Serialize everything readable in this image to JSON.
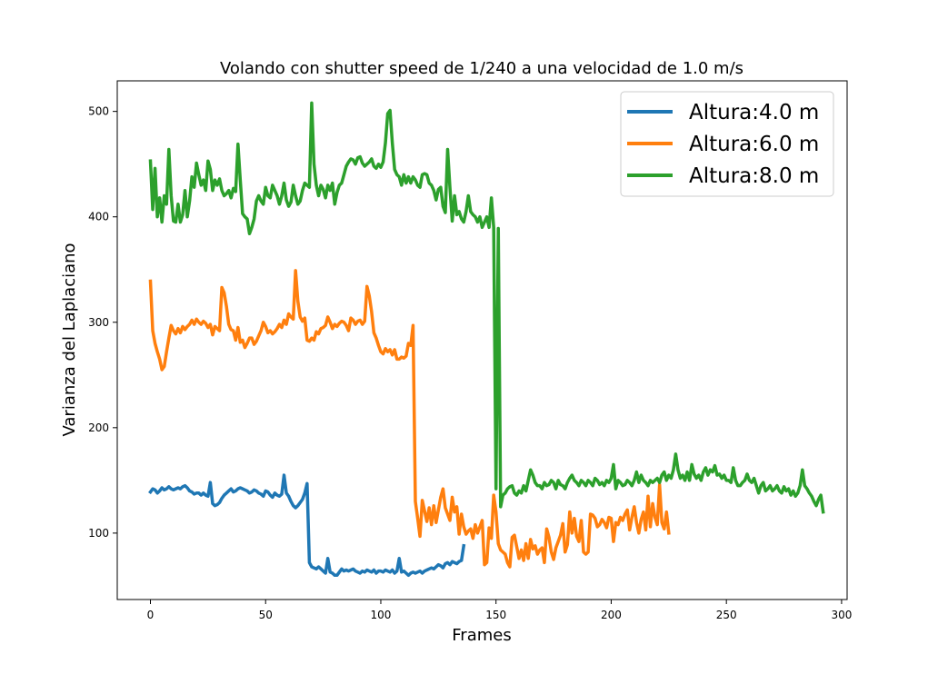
{
  "chart_data": {
    "type": "line",
    "title": "Volando con shutter speed de 1/240 a una velocidad de 1.0 m/s",
    "xlabel": "Frames",
    "ylabel": "Varianza del Laplaciano",
    "xlim": [
      -14.4,
      302.4
    ],
    "ylim": [
      37,
      529
    ],
    "xticks": [
      0,
      50,
      100,
      150,
      200,
      250,
      300
    ],
    "yticks": [
      100,
      200,
      300,
      400,
      500
    ],
    "grid": false,
    "legend_position": "top-right",
    "series": [
      {
        "name": "Altura:4.0 m",
        "color": "#1f77b4",
        "x_start": 0,
        "values": [
          139,
          142,
          141,
          138,
          140,
          143,
          141,
          142,
          144,
          142,
          141,
          142,
          143,
          142,
          144,
          145,
          143,
          140,
          139,
          137,
          138,
          138,
          136,
          138,
          136,
          135,
          148,
          128,
          126,
          127,
          129,
          133,
          136,
          138,
          140,
          142,
          139,
          140,
          142,
          143,
          142,
          141,
          140,
          138,
          139,
          141,
          140,
          138,
          137,
          135,
          140,
          139,
          136,
          134,
          138,
          136,
          135,
          137,
          155,
          138,
          135,
          130,
          126,
          124,
          126,
          129,
          132,
          138,
          147,
          72,
          68,
          67,
          66,
          68,
          66,
          64,
          62,
          76,
          63,
          62,
          60,
          60,
          63,
          66,
          64,
          65,
          64,
          65,
          66,
          64,
          63,
          62,
          64,
          63,
          65,
          64,
          63,
          65,
          62,
          64,
          64,
          63,
          65,
          64,
          63,
          65,
          62,
          64,
          76,
          63,
          64,
          62,
          60,
          62,
          63,
          62,
          63,
          64,
          62,
          64,
          65,
          66,
          67,
          66,
          68,
          70,
          69,
          67,
          71,
          72,
          70,
          73,
          72,
          71,
          73,
          74,
          88
        ]
      },
      {
        "name": "Altura:6.0 m",
        "color": "#ff7f0e",
        "x_start": 0,
        "values": [
          339,
          292,
          280,
          272,
          265,
          255,
          258,
          272,
          285,
          297,
          292,
          289,
          294,
          290,
          296,
          293,
          296,
          298,
          302,
          298,
          303,
          300,
          298,
          301,
          299,
          295,
          298,
          288,
          296,
          294,
          292,
          333,
          328,
          315,
          298,
          293,
          292,
          283,
          295,
          281,
          283,
          276,
          280,
          285,
          285,
          279,
          282,
          287,
          292,
          300,
          296,
          290,
          292,
          289,
          291,
          294,
          298,
          295,
          302,
          298,
          308,
          305,
          303,
          349,
          320,
          305,
          301,
          304,
          283,
          282,
          285,
          283,
          291,
          289,
          294,
          295,
          297,
          305,
          300,
          294,
          298,
          296,
          299,
          301,
          300,
          297,
          292,
          304,
          302,
          298,
          301,
          302,
          298,
          301,
          334,
          325,
          310,
          290,
          285,
          278,
          272,
          270,
          275,
          272,
          274,
          269,
          274,
          265,
          265,
          267,
          266,
          268,
          280,
          278,
          297,
          130,
          114,
          97,
          131,
          121,
          111,
          124,
          108,
          126,
          110,
          122,
          134,
          142,
          124,
          118,
          112,
          134,
          120,
          125,
          99,
          118,
          106,
          99,
          102,
          104,
          95,
          108,
          100,
          106,
          112,
          70,
          72,
          105,
          95,
          136,
          120,
          90,
          84,
          82,
          80,
          72,
          68,
          96,
          98,
          87,
          76,
          84,
          74,
          90,
          76,
          94,
          85,
          88,
          80,
          84,
          86,
          72,
          104,
          96,
          82,
          75,
          86,
          92,
          98,
          109,
          82,
          89,
          120,
          100,
          114,
          97,
          92,
          112,
          82,
          80,
          82,
          118,
          117,
          114,
          106,
          108,
          113,
          110,
          105,
          115,
          114,
          92,
          110,
          108,
          115,
          112,
          118,
          122,
          103,
          115,
          125,
          110,
          100,
          113,
          120,
          103,
          135,
          106,
          128,
          115,
          108,
          146,
          110,
          104,
          120,
          100
        ]
      },
      {
        "name": "Altura:8.0 m",
        "color": "#2ca02c",
        "x_start": 0,
        "values": [
          453,
          407,
          446,
          400,
          418,
          395,
          420,
          412,
          464,
          420,
          396,
          395,
          412,
          395,
          402,
          425,
          400,
          415,
          438,
          428,
          451,
          440,
          430,
          435,
          425,
          453,
          445,
          425,
          435,
          430,
          436,
          425,
          420,
          422,
          425,
          418,
          427,
          424,
          469,
          435,
          403,
          400,
          398,
          384,
          390,
          398,
          415,
          420,
          415,
          412,
          428,
          420,
          418,
          430,
          425,
          420,
          412,
          420,
          432,
          416,
          410,
          414,
          430,
          420,
          412,
          415,
          425,
          432,
          430,
          428,
          508,
          450,
          430,
          420,
          430,
          426,
          418,
          430,
          425,
          432,
          412,
          423,
          430,
          432,
          440,
          448,
          452,
          455,
          454,
          450,
          456,
          457,
          451,
          448,
          450,
          452,
          455,
          448,
          446,
          450,
          447,
          452,
          470,
          498,
          501,
          470,
          445,
          440,
          438,
          430,
          440,
          432,
          438,
          432,
          438,
          435,
          430,
          428,
          440,
          441,
          440,
          432,
          430,
          425,
          416,
          426,
          428,
          410,
          404,
          464,
          428,
          396,
          420,
          402,
          405,
          398,
          395,
          405,
          420,
          405,
          402,
          400,
          395,
          400,
          390,
          395,
          400,
          390,
          418,
          390,
          142,
          389,
          125,
          136,
          138,
          142,
          144,
          145,
          138,
          136,
          140,
          138,
          145,
          140,
          150,
          160,
          155,
          148,
          145,
          145,
          142,
          148,
          145,
          146,
          150,
          148,
          142,
          150,
          146,
          145,
          142,
          148,
          152,
          155,
          150,
          148,
          145,
          150,
          148,
          145,
          150,
          148,
          145,
          152,
          150,
          146,
          148,
          145,
          150,
          148,
          152,
          165,
          142,
          150,
          148,
          145,
          146,
          150,
          148,
          145,
          150,
          158,
          148,
          155,
          150,
          148,
          145,
          150,
          148,
          150,
          152,
          148,
          155,
          158,
          150,
          155,
          152,
          160,
          175,
          160,
          152,
          155,
          150,
          158,
          150,
          165,
          156,
          152,
          155,
          150,
          158,
          162,
          155,
          160,
          158,
          164,
          155,
          156,
          152,
          155,
          150,
          150,
          148,
          162,
          150,
          145,
          145,
          148,
          150,
          156,
          150,
          148,
          152,
          145,
          138,
          145,
          148,
          140,
          142,
          145,
          140,
          142,
          145,
          140,
          138,
          144,
          140,
          142,
          136,
          140,
          135,
          138,
          145,
          160,
          145,
          142,
          138,
          135,
          130,
          126,
          132,
          136,
          120
        ]
      }
    ]
  }
}
